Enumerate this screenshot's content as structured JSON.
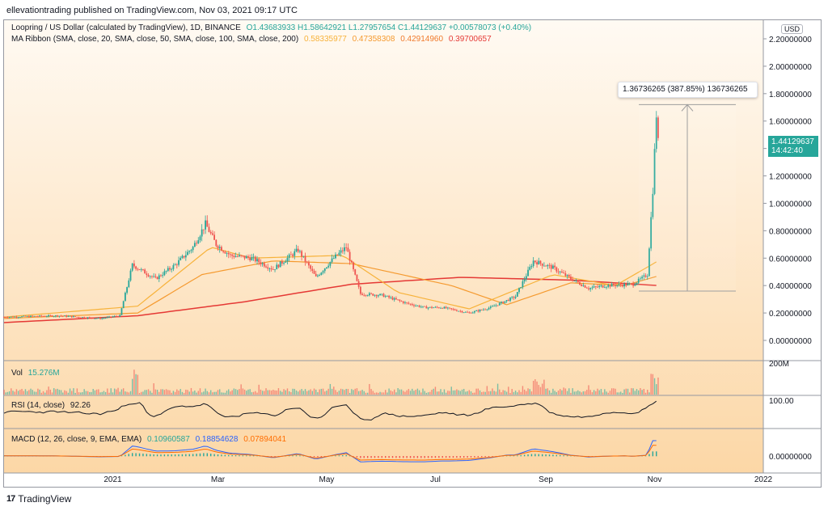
{
  "header": {
    "text": "ellevationtrading published on TradingView.com, Nov 03, 2021 09:17 UTC"
  },
  "legend": {
    "symbol": "Loopring / US Dollar (calculated by TradingView), 1D, BINANCE",
    "ohlc": "O1.43683933 H1.58642921 L1.27957654 C1.44129637 +0.00578073 (+0.40%)",
    "ma_title": "MA Ribbon (SMA, close, 20, SMA, close, 50, SMA, close, 100, SMA, close, 200)",
    "ma_values": [
      "0.58335977",
      "0.47358308",
      "0.42914960",
      "0.39700657"
    ],
    "ma_colors": [
      "#f7b23a",
      "#f59a2f",
      "#f07a2c",
      "#e53935"
    ],
    "vol_label": "Vol",
    "vol_value": "15.276M",
    "rsi_label": "RSI (14, close)",
    "rsi_value": "92.26",
    "macd_label": "MACD (12, 26, close, 9, EMA, EMA)",
    "macd_values": [
      "0.10960587",
      "0.18854628",
      "0.07894041"
    ],
    "macd_colors": [
      "#26a69a",
      "#2962ff",
      "#ff6d00"
    ]
  },
  "currency_label": "USD",
  "price_tag": {
    "price": "1.44129637",
    "countdown": "14:42:40"
  },
  "measure_tooltip": "1.36736265 (387.85%) 136736265",
  "footer": {
    "brand": "TradingView"
  },
  "chart_data": {
    "type": "candlestick",
    "y_ticks": [
      "2.20000000",
      "2.00000000",
      "1.80000000",
      "1.60000000",
      "1.40000000",
      "1.20000000",
      "1.00000000",
      "0.80000000",
      "0.60000000",
      "0.40000000",
      "0.20000000",
      "0.00000000"
    ],
    "ylim": [
      -0.05,
      2.25
    ],
    "x_ticks": [
      "2021",
      "Mar",
      "May",
      "Jul",
      "Sep",
      "Nov",
      "2022"
    ],
    "vol_axis": "200M",
    "rsi_axis": "100.00",
    "macd_axis": "0.00000000",
    "price_series": [
      [
        "2020-11-01",
        0.17
      ],
      [
        "2020-12-01",
        0.18
      ],
      [
        "2020-12-25",
        0.16
      ],
      [
        "2021-01-05",
        0.18
      ],
      [
        "2021-01-12",
        0.55
      ],
      [
        "2021-01-25",
        0.45
      ],
      [
        "2021-02-05",
        0.55
      ],
      [
        "2021-02-15",
        0.68
      ],
      [
        "2021-02-22",
        0.85
      ],
      [
        "2021-02-28",
        0.7
      ],
      [
        "2021-03-08",
        0.62
      ],
      [
        "2021-03-20",
        0.6
      ],
      [
        "2021-04-01",
        0.52
      ],
      [
        "2021-04-15",
        0.66
      ],
      [
        "2021-04-25",
        0.46
      ],
      [
        "2021-05-05",
        0.6
      ],
      [
        "2021-05-12",
        0.68
      ],
      [
        "2021-05-20",
        0.34
      ],
      [
        "2021-06-01",
        0.33
      ],
      [
        "2021-06-15",
        0.27
      ],
      [
        "2021-06-25",
        0.24
      ],
      [
        "2021-07-05",
        0.24
      ],
      [
        "2021-07-20",
        0.2
      ],
      [
        "2021-08-01",
        0.24
      ],
      [
        "2021-08-15",
        0.32
      ],
      [
        "2021-08-25",
        0.58
      ],
      [
        "2021-09-05",
        0.53
      ],
      [
        "2021-09-15",
        0.45
      ],
      [
        "2021-09-25",
        0.38
      ],
      [
        "2021-10-05",
        0.4
      ],
      [
        "2021-10-20",
        0.41
      ],
      [
        "2021-10-28",
        0.48
      ],
      [
        "2021-10-31",
        1.1
      ],
      [
        "2021-11-02",
        1.65
      ],
      [
        "2021-11-03",
        1.44
      ]
    ],
    "ma_200": [
      [
        "2020-11-01",
        0.13
      ],
      [
        "2021-01-15",
        0.18
      ],
      [
        "2021-03-15",
        0.28
      ],
      [
        "2021-05-15",
        0.41
      ],
      [
        "2021-07-15",
        0.46
      ],
      [
        "2021-09-15",
        0.44
      ],
      [
        "2021-11-03",
        0.4
      ]
    ],
    "ma_50": [
      [
        "2020-11-01",
        0.16
      ],
      [
        "2021-01-15",
        0.2
      ],
      [
        "2021-02-20",
        0.48
      ],
      [
        "2021-04-01",
        0.58
      ],
      [
        "2021-05-15",
        0.56
      ],
      [
        "2021-07-10",
        0.4
      ],
      [
        "2021-08-10",
        0.26
      ],
      [
        "2021-09-15",
        0.42
      ],
      [
        "2021-10-15",
        0.4
      ],
      [
        "2021-11-03",
        0.47
      ]
    ],
    "ma_20": [
      [
        "2020-11-01",
        0.17
      ],
      [
        "2021-01-15",
        0.25
      ],
      [
        "2021-02-25",
        0.68
      ],
      [
        "2021-03-20",
        0.6
      ],
      [
        "2021-05-10",
        0.62
      ],
      [
        "2021-06-10",
        0.35
      ],
      [
        "2021-07-20",
        0.23
      ],
      [
        "2021-09-05",
        0.48
      ],
      [
        "2021-10-10",
        0.4
      ],
      [
        "2021-11-03",
        0.58
      ]
    ],
    "measure": {
      "from": 0.36,
      "to": 1.72
    }
  }
}
